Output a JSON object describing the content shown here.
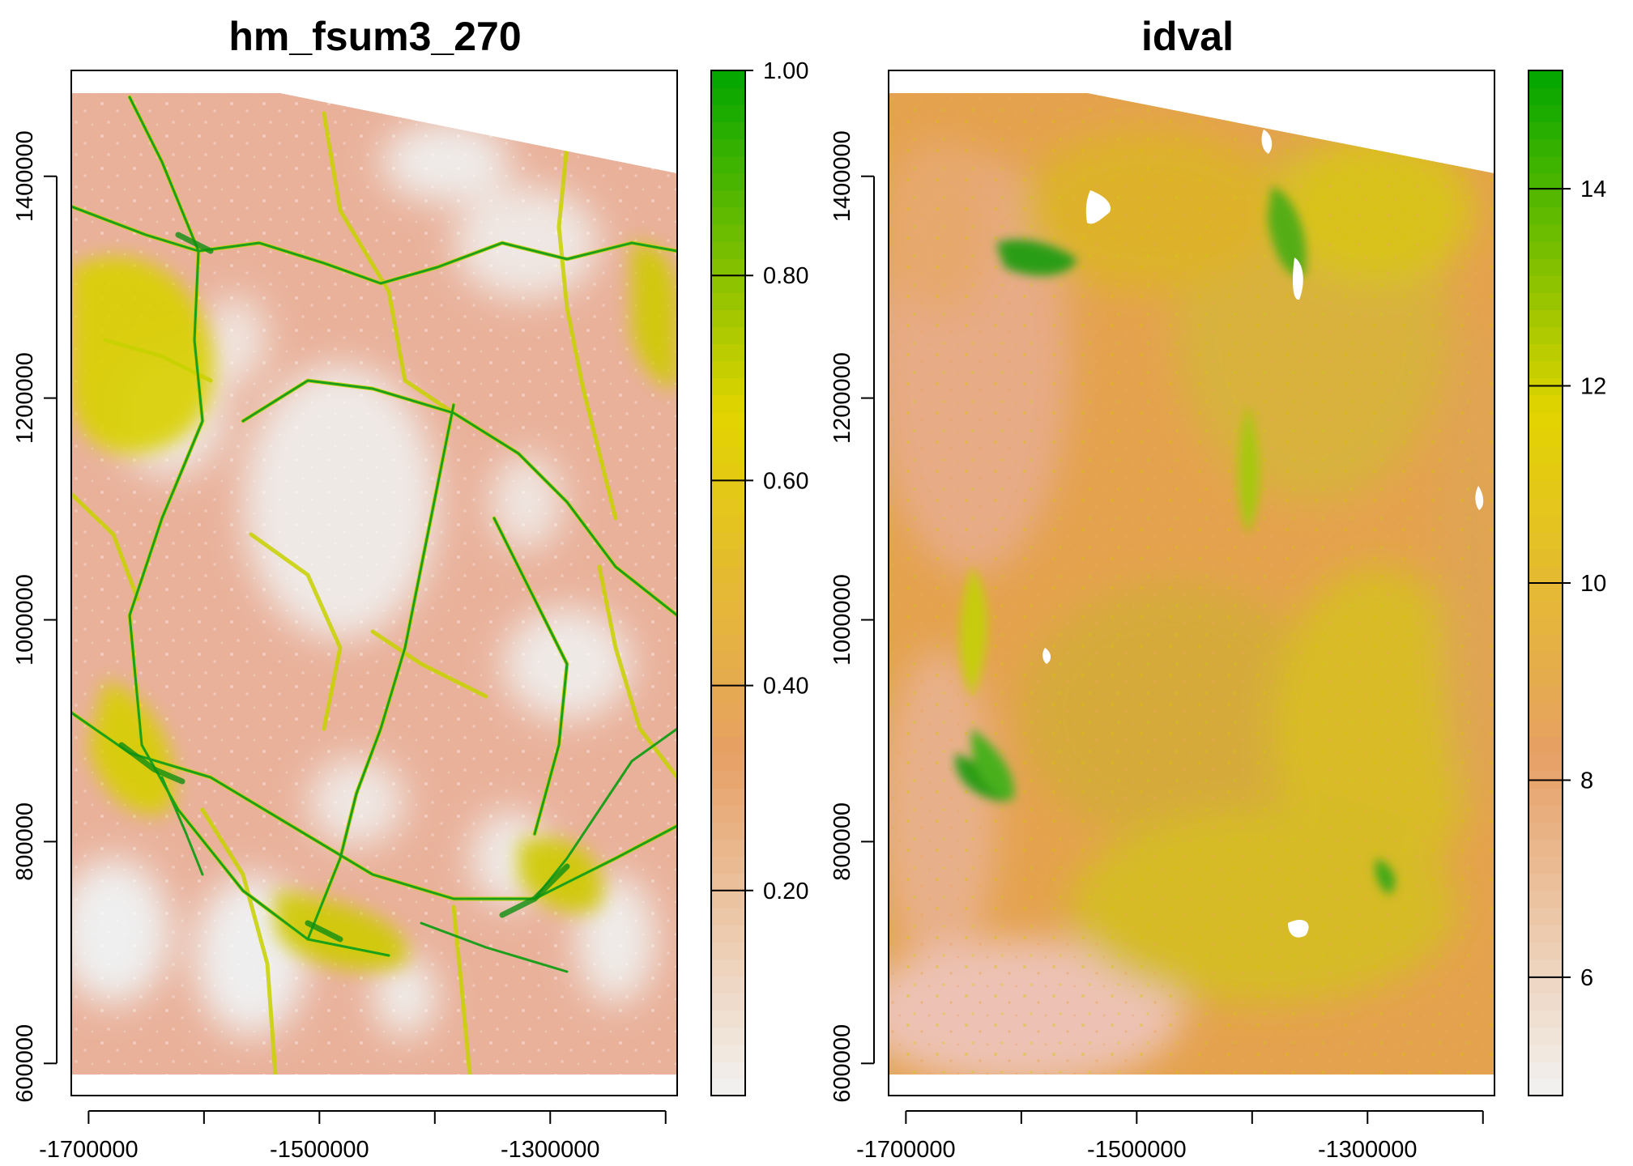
{
  "chart_data": [
    {
      "type": "heatmap",
      "title": "hm_fsum3_270",
      "xlabel": "",
      "ylabel": "",
      "x_ticks": [
        -1700000,
        -1500000,
        -1300000
      ],
      "x_tick_labels": [
        "-1700000",
        "-1500000",
        "-1300000"
      ],
      "y_ticks": [
        600000,
        800000,
        1000000,
        1200000,
        1400000
      ],
      "y_tick_labels": [
        "600000",
        "800000",
        "1000000",
        "1200000",
        "1400000"
      ],
      "xlim": [
        -1715000,
        -1190000
      ],
      "ylim": [
        590000,
        1475000
      ],
      "legend": {
        "position": "right",
        "range": [
          0,
          1
        ],
        "ticks": [
          0.2,
          0.4,
          0.6,
          0.8,
          1.0
        ],
        "tick_labels": [
          "0.20",
          "0.40",
          "0.60",
          "0.80",
          "1.00"
        ]
      },
      "colors": {
        "low": "#f2f2f2",
        "mid_low": "#e6a064",
        "mid": "#e3d400",
        "high": "#00a600"
      },
      "grid": false
    },
    {
      "type": "heatmap",
      "title": "idval",
      "xlabel": "",
      "ylabel": "",
      "x_ticks": [
        -1700000,
        -1500000,
        -1300000
      ],
      "x_tick_labels": [
        "-1700000",
        "-1500000",
        "-1300000"
      ],
      "y_ticks": [
        600000,
        800000,
        1000000,
        1200000,
        1400000
      ],
      "y_tick_labels": [
        "600000",
        "800000",
        "1000000",
        "1200000",
        "1400000"
      ],
      "xlim": [
        -1715000,
        -1190000
      ],
      "ylim": [
        590000,
        1475000
      ],
      "legend": {
        "position": "right",
        "range": [
          4.8,
          15.2
        ],
        "ticks": [
          6,
          8,
          10,
          12,
          14
        ],
        "tick_labels": [
          "6",
          "8",
          "10",
          "12",
          "14"
        ]
      },
      "colors": {
        "low": "#f2f2f2",
        "mid_low": "#e6a064",
        "mid": "#e3d400",
        "high": "#00a600"
      },
      "grid": false
    }
  ]
}
